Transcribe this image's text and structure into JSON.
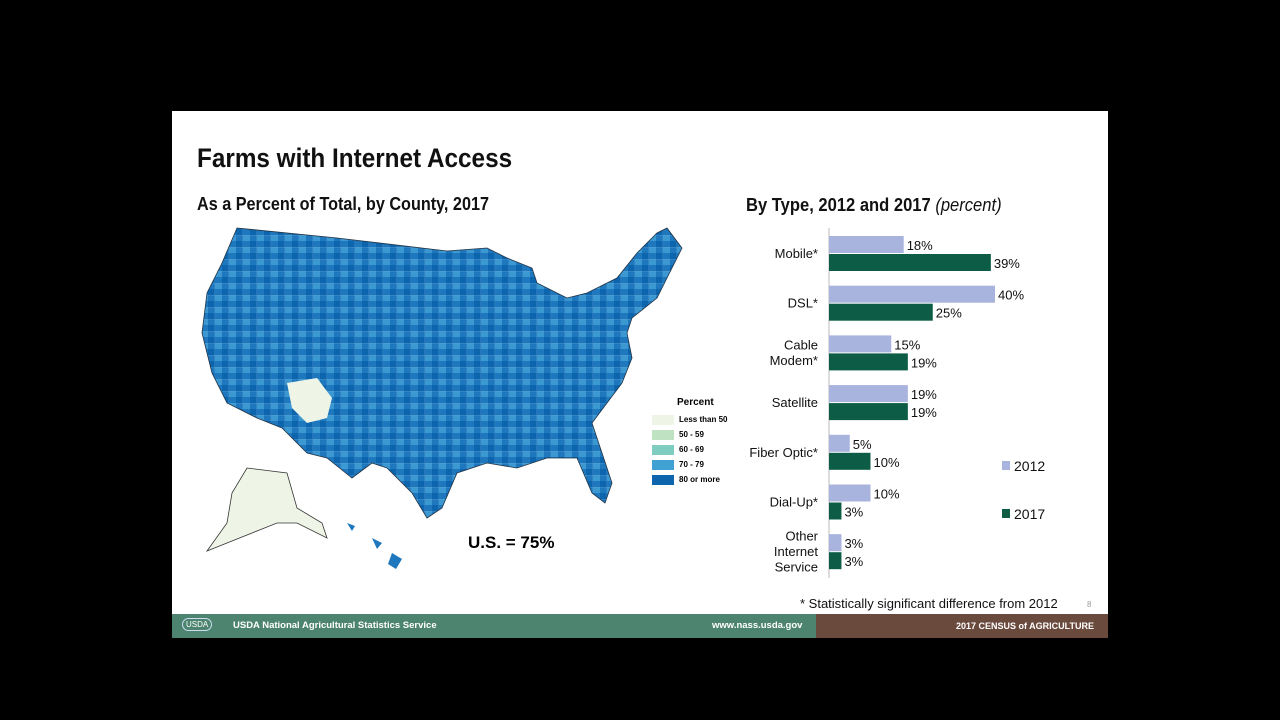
{
  "title": "Farms with Internet Access",
  "map": {
    "subtitle": "As a Percent of Total, by County, 2017",
    "us_total": "U.S. = 75%",
    "legend": {
      "title": "Percent",
      "items": [
        {
          "label": "Less than 50",
          "color": "#eef5e6"
        },
        {
          "label": "50 - 59",
          "color": "#bfe3c2"
        },
        {
          "label": "60 - 69",
          "color": "#7fcdc0"
        },
        {
          "label": "70 - 79",
          "color": "#41a1d3"
        },
        {
          "label": "80 or more",
          "color": "#0c65ad"
        }
      ]
    }
  },
  "chart_data": {
    "type": "bar",
    "orientation": "horizontal",
    "title": "By Type, 2012 and 2017",
    "title_suffix": "(percent)",
    "categories": [
      "Mobile*",
      "DSL*",
      "Cable Modem*",
      "Satellite",
      "Fiber Optic*",
      "Dial-Up*",
      "Other Internet Service"
    ],
    "series": [
      {
        "name": "2012",
        "color": "#a8b3de",
        "values": [
          18,
          40,
          15,
          19,
          5,
          10,
          3
        ]
      },
      {
        "name": "2017",
        "color": "#0d5c45",
        "values": [
          39,
          25,
          19,
          19,
          10,
          3,
          3
        ]
      }
    ],
    "xlim": [
      0,
      40
    ],
    "legend": "right",
    "grid": false
  },
  "note": "* Statistically significant difference from 2012",
  "page_number": "8",
  "footer": {
    "logo": "USDA",
    "agency": "USDA National Agricultural Statistics Service",
    "url": "www.nass.usda.gov",
    "census": "2017 CENSUS of AGRICULTURE"
  }
}
